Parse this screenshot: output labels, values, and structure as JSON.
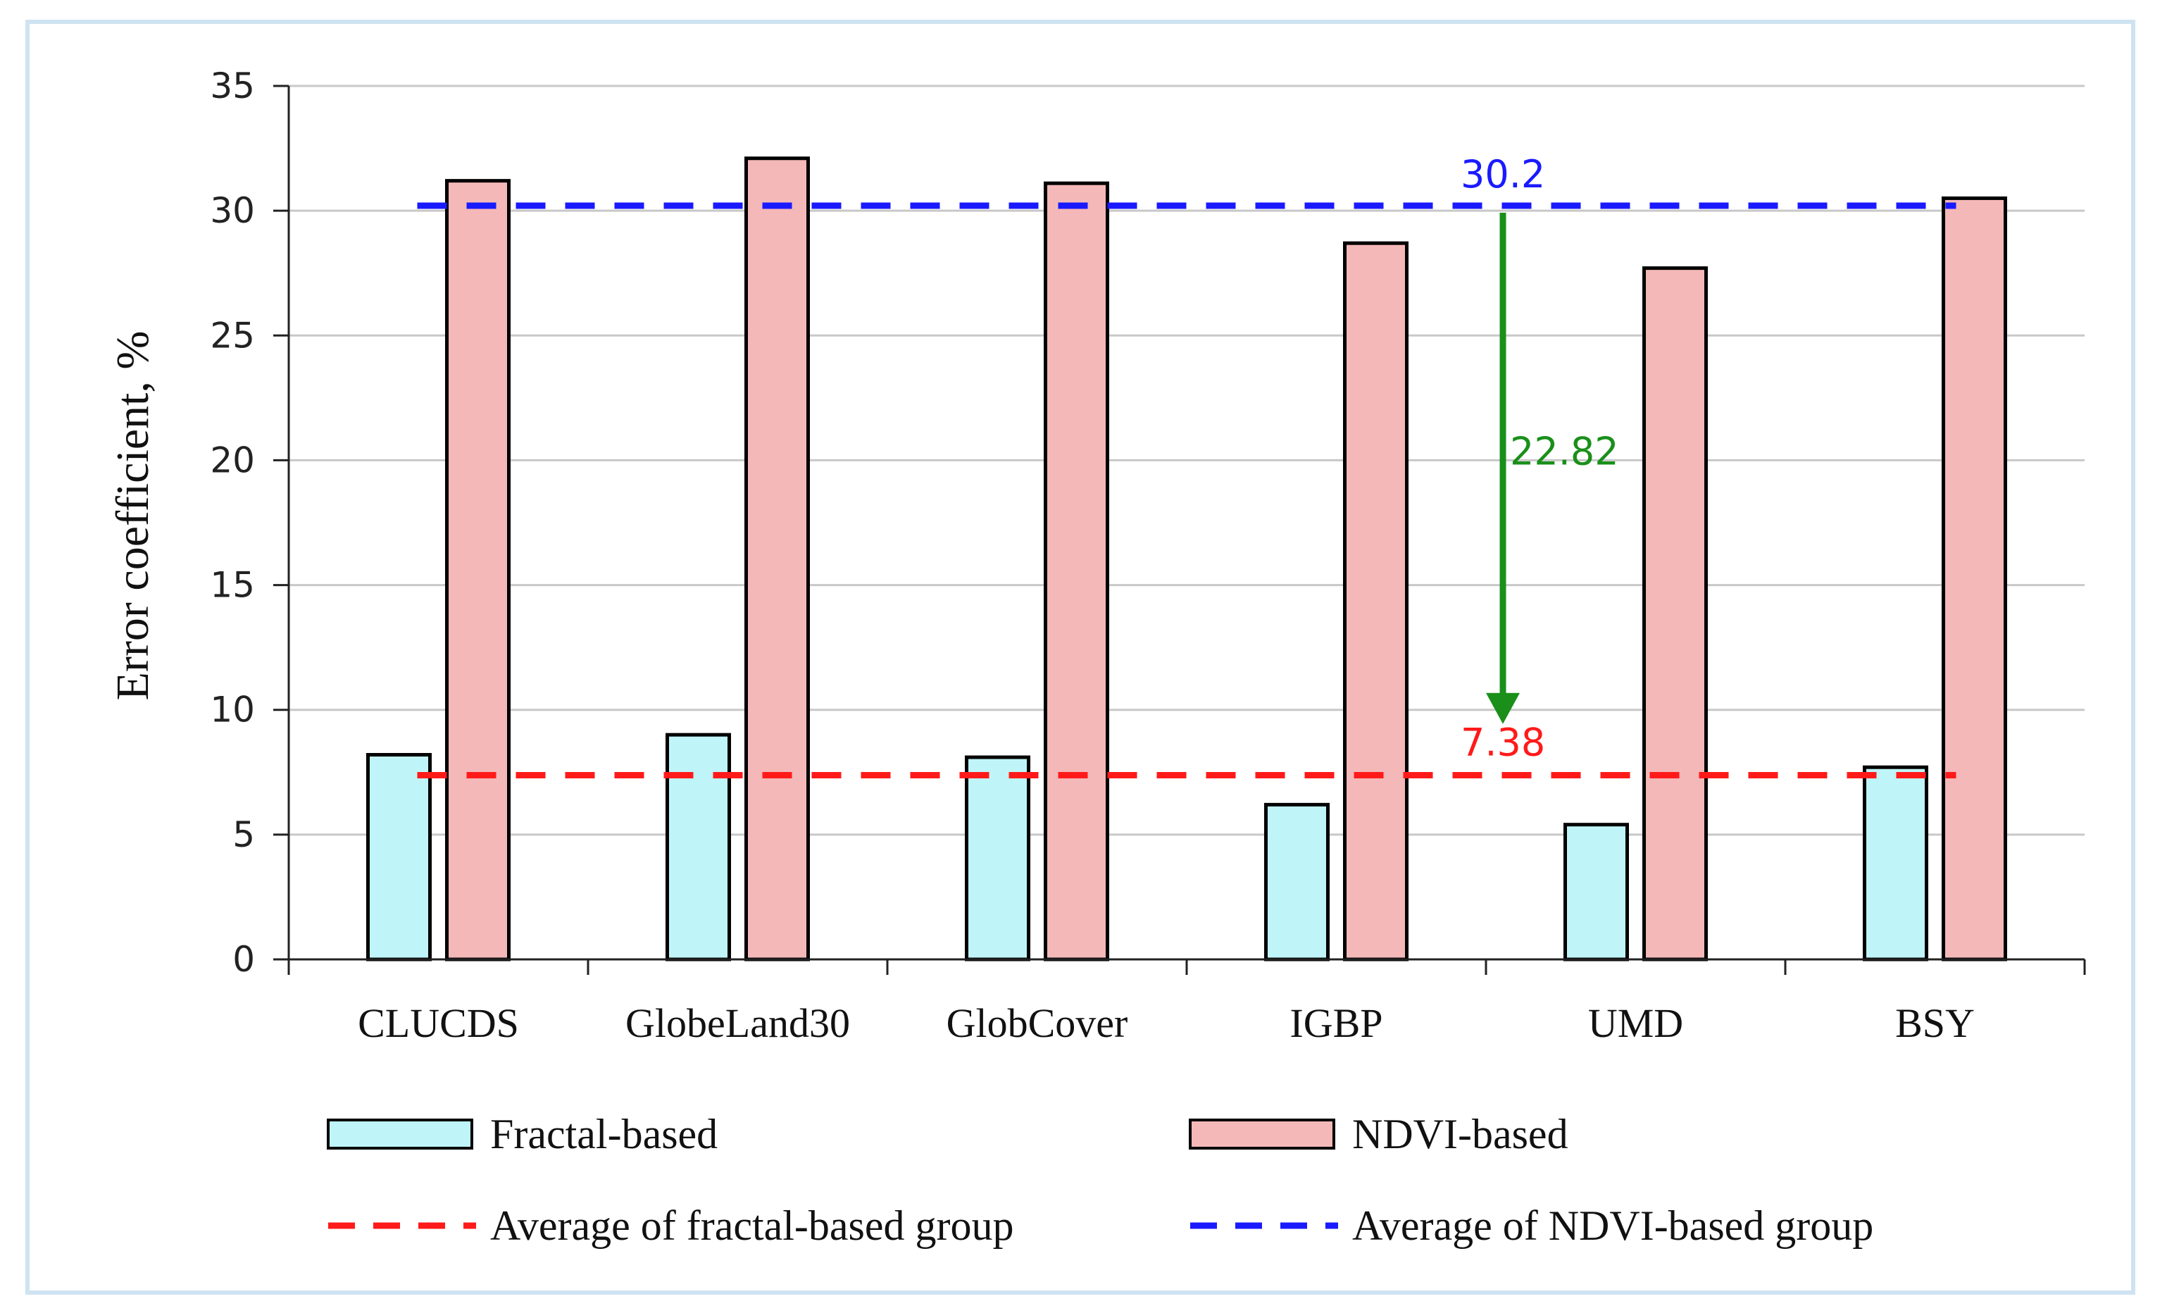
{
  "chart_data": {
    "type": "bar",
    "title": "",
    "xlabel": "",
    "ylabel": "Error coefficient, %",
    "ylim": [
      0,
      35
    ],
    "yticks": [
      0,
      5,
      10,
      15,
      20,
      25,
      30,
      35
    ],
    "grid": true,
    "categories": [
      "CLUCDS",
      "GlobeLand30",
      "GlobCover",
      "IGBP",
      "UMD",
      "BSY"
    ],
    "series": [
      {
        "name": "Fractal-based",
        "color": "#bff5f8",
        "values": [
          8.2,
          9.0,
          8.1,
          6.2,
          5.4,
          7.7
        ]
      },
      {
        "name": "NDVI-based",
        "color": "#f4b8b8",
        "values": [
          31.2,
          32.1,
          31.1,
          28.7,
          27.7,
          30.5
        ]
      }
    ],
    "reference_lines": [
      {
        "name": "Average of fractal-based group",
        "value": 7.38,
        "label": "7.38",
        "color": "#ff1a1a",
        "style": "dashed"
      },
      {
        "name": "Average of NDVI-based group",
        "value": 30.2,
        "label": "30.2",
        "color": "#1a1aff",
        "style": "dashed"
      }
    ],
    "annotations": [
      {
        "type": "arrow",
        "from": 30.2,
        "to": 7.38,
        "label": "22.82",
        "color": "#1a8f1a"
      }
    ],
    "legend_position": "bottom"
  }
}
